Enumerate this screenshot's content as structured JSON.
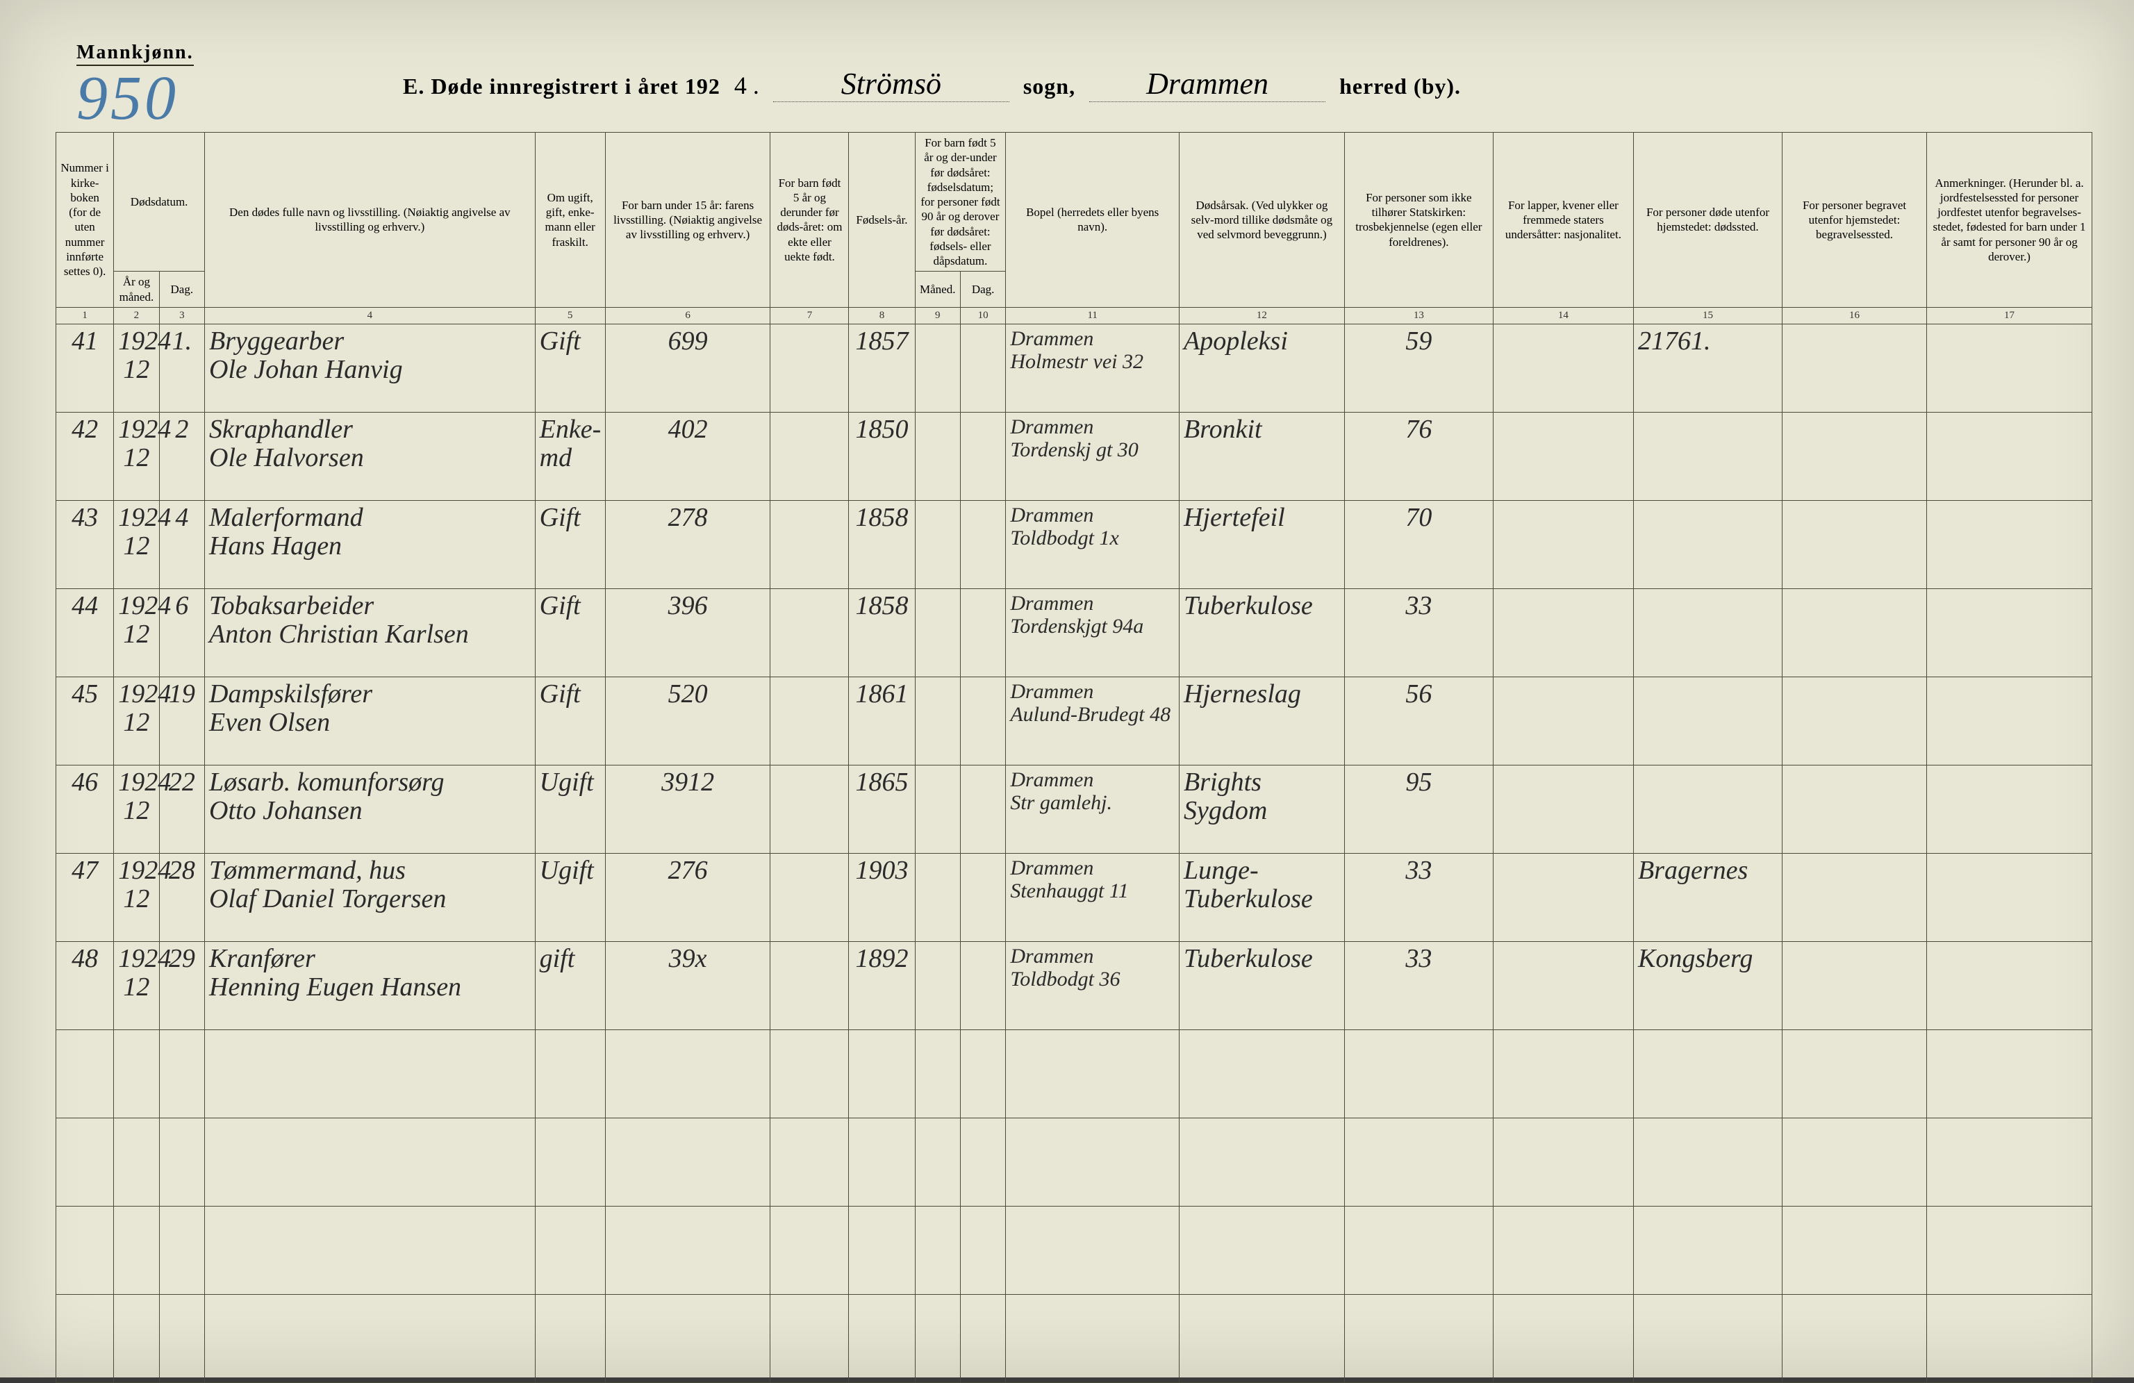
{
  "colors": {
    "paper": "#e8e6d4",
    "ink": "#2a2a2a",
    "rule": "#4a4a3a",
    "page_number": "#4a7ba8"
  },
  "typography": {
    "printed_font": "Times New Roman",
    "printed_header_size_pt": 17,
    "title_size_pt": 32,
    "handwritten_font": "Brush Script MT",
    "handwritten_size_pt": 38
  },
  "header": {
    "gender_label": "Mannkjønn.",
    "page_number": "950",
    "title_prefix": "E.  Døde innregistrert i året 192",
    "year_digit": "4 .",
    "sogn_value": "Strömsö",
    "sogn_label": "sogn,",
    "herred_value": "Drammen",
    "herred_label": "herred (by)."
  },
  "columns": {
    "c1": "Nummer i kirke-boken (for de uten nummer innførte settes 0).",
    "c2_3_group": "Dødsdatum.",
    "c2": "År og måned.",
    "c3": "Dag.",
    "c4": "Den dødes fulle navn og livsstilling. (Nøiaktig angivelse av livsstilling og erhverv.)",
    "c5": "Om ugift, gift, enke-mann eller fraskilt.",
    "c6": "For barn under 15 år: farens livsstilling. (Nøiaktig angivelse av livsstilling og erhverv.)",
    "c7": "For barn født 5 år og derunder før døds-året: om ekte eller uekte født.",
    "c8": "Fødsels-år.",
    "c9_10_group": "For barn født 5 år og der-under før dødsåret: fødselsdatum; for personer født 90 år og derover før dødsåret: fødsels- eller dåpsdatum.",
    "c9": "Måned.",
    "c10": "Dag.",
    "c11": "Bopel (herredets eller byens navn).",
    "c12": "Dødsårsak. (Ved ulykker og selv-mord tillike dødsmåte og ved selvmord beveggrunn.)",
    "c13": "For personer som ikke tilhører Statskirken: trosbekjennelse (egen eller foreldrenes).",
    "c14": "For lapper, kvener eller fremmede staters undersåtter: nasjonalitet.",
    "c15": "For personer døde utenfor hjemstedet: dødssted.",
    "c16": "For personer begravet utenfor hjemstedet: begravelsessted.",
    "c17": "Anmerkninger. (Herunder bl. a. jordfestelsessted for personer jordfestet utenfor begravelses-stedet, fødested for barn under 1 år samt for personer 90 år og derover.)"
  },
  "colnums": [
    "1",
    "2",
    "3",
    "4",
    "5",
    "6",
    "7",
    "8",
    "9",
    "10",
    "11",
    "12",
    "13",
    "14",
    "15",
    "16",
    "17"
  ],
  "rows": [
    {
      "num": "41",
      "year_month_top": "1924",
      "year_month_bot": "12",
      "day": "1.",
      "name_top": "Bryggearber",
      "name_bot": "Ole Johan Hanvig",
      "status": "Gift",
      "col6": "699",
      "col7": "",
      "birth_year": "1857",
      "c9": "",
      "c10": "",
      "bopel_top": "Drammen",
      "bopel_bot": "Holmestr vei 32",
      "cause": "Apopleksi",
      "c13": "59",
      "c14": "",
      "c15": "21761.",
      "c16": "",
      "c17": ""
    },
    {
      "num": "42",
      "year_month_top": "1924",
      "year_month_bot": "12",
      "day": "2",
      "name_top": "Skraphandler",
      "name_bot": "Ole Halvorsen",
      "status": "Enke-md",
      "col6": "402",
      "col7": "",
      "birth_year": "1850",
      "c9": "",
      "c10": "",
      "bopel_top": "Drammen",
      "bopel_bot": "Tordenskj gt 30",
      "cause": "Bronkit",
      "c13": "76",
      "c14": "",
      "c15": "",
      "c16": "",
      "c17": ""
    },
    {
      "num": "43",
      "year_month_top": "1924",
      "year_month_bot": "12",
      "day": "4",
      "name_top": "Malerformand",
      "name_bot": "Hans Hagen",
      "status": "Gift",
      "col6": "278",
      "col7": "",
      "birth_year": "1858",
      "c9": "",
      "c10": "",
      "bopel_top": "Drammen",
      "bopel_bot": "Toldbodgt 1x",
      "cause": "Hjertefeil",
      "c13": "70",
      "c14": "",
      "c15": "",
      "c16": "",
      "c17": ""
    },
    {
      "num": "44",
      "year_month_top": "1924",
      "year_month_bot": "12",
      "day": "6",
      "name_top": "Tobaksarbeider",
      "name_bot": "Anton Christian Karlsen",
      "status": "Gift",
      "col6": "396",
      "col7": "",
      "birth_year": "1858",
      "c9": "",
      "c10": "",
      "bopel_top": "Drammen",
      "bopel_bot": "Tordenskjgt 94a",
      "cause": "Tuberkulose",
      "c13": "33",
      "c14": "",
      "c15": "",
      "c16": "",
      "c17": ""
    },
    {
      "num": "45",
      "year_month_top": "1924",
      "year_month_bot": "12",
      "day": "19",
      "name_top": "Dampskilsfører",
      "name_bot": "Even Olsen",
      "status": "Gift",
      "col6": "520",
      "col7": "",
      "birth_year": "1861",
      "c9": "",
      "c10": "",
      "bopel_top": "Drammen",
      "bopel_bot": "Aulund-Brudegt 48",
      "cause": "Hjerneslag",
      "c13": "56",
      "c14": "",
      "c15": "",
      "c16": "",
      "c17": ""
    },
    {
      "num": "46",
      "year_month_top": "1924",
      "year_month_bot": "12",
      "day": "22",
      "name_top": "Løsarb. komunforsørg",
      "name_bot": "Otto Johansen",
      "status": "Ugift",
      "col6": "3912",
      "col7": "",
      "birth_year": "1865",
      "c9": "",
      "c10": "",
      "bopel_top": "Drammen",
      "bopel_bot": "Str gamlehj.",
      "cause": "Brights Sygdom",
      "c13": "95",
      "c14": "",
      "c15": "",
      "c16": "",
      "c17": ""
    },
    {
      "num": "47",
      "year_month_top": "1924",
      "year_month_bot": "12",
      "day": "28",
      "name_top": "Tømmermand, hus",
      "name_bot": "Olaf Daniel Torgersen",
      "status": "Ugift",
      "col6": "276",
      "col7": "",
      "birth_year": "1903",
      "c9": "",
      "c10": "",
      "bopel_top": "Drammen",
      "bopel_bot": "Stenhauggt 11",
      "cause": "Lunge-Tuberkulose",
      "c13": "33",
      "c14": "",
      "c15": "Bragernes",
      "c16": "",
      "c17": ""
    },
    {
      "num": "48",
      "year_month_top": "1924",
      "year_month_bot": "12",
      "day": "29",
      "name_top": "Kranfører",
      "name_bot": "Henning Eugen Hansen",
      "status": "gift",
      "col6": "39x",
      "col7": "",
      "birth_year": "1892",
      "c9": "",
      "c10": "",
      "bopel_top": "Drammen",
      "bopel_bot": "Toldbodgt 36",
      "cause": "Tuberkulose",
      "c13": "33",
      "c14": "",
      "c15": "Kongsberg",
      "c16": "",
      "c17": ""
    }
  ],
  "empty_rows": 4
}
